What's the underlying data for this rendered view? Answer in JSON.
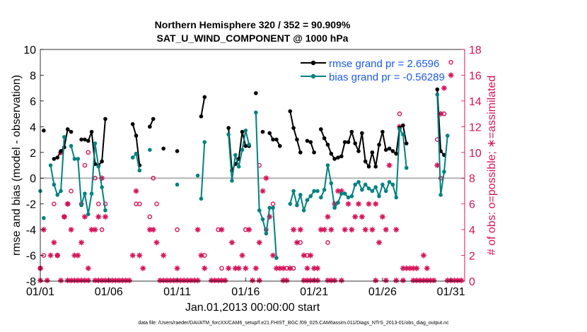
{
  "chart_data": {
    "type": "line",
    "title": "Northern Hemisphere 320 / 352 = 90.909%",
    "subtitle": "SAT_U_WIND_COMPONENT @ 1000 hPa",
    "xlabel": "Jan.01,2013 00:00:00 start",
    "ylabel_left": "rmse and bias (model - observation)",
    "ylabel_right": "# of obs: o=possible; ∗=assimilated",
    "footer": "data file: /Users/raeder/DAI/ATM_forcXX/CAM6_setup/f.e21.FHIST_BGC.f09_025.CAM6assim.011/Diags_NTrS_2013-01/obs_diag_output.nc",
    "x_tick_labels": [
      "01/01",
      "01/06",
      "01/11",
      "01/16",
      "01/21",
      "01/26",
      "01/31"
    ],
    "x_ticks": [
      1,
      6,
      11,
      16,
      21,
      26,
      31
    ],
    "xlim": [
      1,
      32
    ],
    "ylim_left": [
      -8,
      10
    ],
    "yticks_left": [
      -8,
      -6,
      -4,
      -2,
      0,
      2,
      4,
      6,
      8,
      10
    ],
    "ylim_right": [
      0,
      18
    ],
    "yticks_right": [
      0,
      2,
      4,
      6,
      8,
      10,
      12,
      14,
      16,
      18
    ],
    "grid": false,
    "zero_line": true,
    "legend_placement": "top-right",
    "colors": {
      "rmse": "#000000",
      "bias": "#00827f",
      "obs": "#d6135a",
      "zero": "#b3b3b3"
    },
    "series": [
      {
        "name": "rmse grand pr = 2.6596",
        "key": "rmse",
        "values": [
          [
            1.25,
            3.7
          ],
          null,
          [
            2.0,
            1.5
          ],
          [
            2.25,
            1.6
          ],
          [
            2.5,
            2.1
          ],
          [
            2.75,
            2.4
          ],
          [
            3.0,
            3.8
          ],
          [
            3.25,
            3.6
          ],
          null,
          [
            4.0,
            3.0
          ],
          [
            4.25,
            3.0
          ],
          [
            4.5,
            2.9
          ],
          [
            4.75,
            3.6
          ],
          [
            5.0,
            1.1
          ],
          [
            5.25,
            1.0
          ],
          [
            5.5,
            1.3
          ],
          [
            5.75,
            4.6
          ],
          null,
          [
            7.75,
            4.2
          ],
          [
            8.0,
            3.3
          ],
          [
            8.25,
            1.0
          ],
          null,
          [
            9.0,
            4.0
          ],
          [
            9.25,
            4.6
          ],
          null,
          [
            10.0,
            2.3
          ],
          null,
          [
            11.0,
            2.1
          ],
          null,
          [
            12.75,
            4.8
          ],
          [
            13.0,
            6.3
          ],
          null,
          [
            14.75,
            3.9
          ],
          [
            15.0,
            0.6
          ],
          [
            15.25,
            1.1
          ],
          [
            15.5,
            1.5
          ],
          [
            15.75,
            3.6
          ],
          [
            16.0,
            2.5
          ],
          [
            16.25,
            2.5
          ],
          null,
          [
            16.75,
            6.6
          ],
          null,
          [
            17.25,
            3.6
          ],
          null,
          [
            17.75,
            3.5
          ],
          [
            18.0,
            3.0
          ],
          [
            18.25,
            3.0
          ],
          [
            18.5,
            2.5
          ],
          null,
          [
            19.25,
            5.2
          ],
          [
            19.5,
            3.9
          ],
          [
            19.75,
            3.0
          ],
          [
            20.0,
            2.0
          ],
          null,
          [
            20.5,
            2.9
          ],
          [
            20.75,
            2.8
          ],
          [
            21.0,
            2.0
          ],
          null,
          [
            21.5,
            3.8
          ],
          [
            21.75,
            3.1
          ],
          [
            22.0,
            2.6
          ],
          [
            22.25,
            1.9
          ],
          [
            22.5,
            1.5
          ],
          [
            22.75,
            1.6
          ],
          [
            23.0,
            1.7
          ],
          [
            23.25,
            2.8
          ],
          [
            23.5,
            2.8
          ],
          [
            23.75,
            3.6
          ],
          [
            24.0,
            2.7
          ],
          [
            24.25,
            2.1
          ],
          [
            24.5,
            3.5
          ],
          [
            24.75,
            1.3
          ],
          [
            25.0,
            0.9
          ],
          [
            25.25,
            2.0
          ],
          [
            25.5,
            0.9
          ],
          [
            25.75,
            2.6
          ],
          [
            26.0,
            3.6
          ],
          [
            26.25,
            2.2
          ],
          [
            26.5,
            2.3
          ],
          [
            26.75,
            2.1
          ],
          [
            27.0,
            1.9
          ],
          [
            27.25,
            3.9
          ],
          [
            27.5,
            4.1
          ],
          [
            27.75,
            2.7
          ],
          null,
          [
            30.0,
            6.9
          ],
          [
            30.25,
            2.1
          ],
          [
            30.5,
            1.8
          ]
        ]
      },
      {
        "name": "bias grand pr = -0.56289",
        "key": "bias",
        "values": [
          [
            1.0,
            -1.0
          ],
          null,
          [
            1.25,
            -3.1
          ],
          null,
          [
            1.75,
            1.0
          ],
          [
            2.0,
            -0.5
          ],
          [
            2.25,
            -1.3
          ],
          [
            2.5,
            -1.0
          ],
          [
            2.75,
            3.2
          ],
          null,
          [
            3.25,
            2.5
          ],
          [
            3.5,
            1.5
          ],
          [
            3.75,
            1.5
          ],
          [
            4.0,
            -2.1
          ],
          [
            4.25,
            -1.2
          ],
          [
            4.5,
            -2.8
          ],
          [
            4.75,
            -1.2
          ],
          [
            5.0,
            2.7
          ],
          [
            5.25,
            0.9
          ],
          [
            5.5,
            -0.7
          ],
          [
            5.75,
            -2.5
          ],
          null,
          [
            7.75,
            1.6
          ],
          [
            8.0,
            1.9
          ],
          [
            8.25,
            0.6
          ],
          null,
          [
            9.0,
            2.2
          ],
          null,
          [
            11.0,
            -0.5
          ],
          null,
          [
            12.5,
            0.2
          ],
          null,
          [
            12.75,
            -1.6
          ],
          [
            13.0,
            2.8
          ],
          null,
          [
            14.75,
            3.4
          ],
          [
            15.0,
            -0.2
          ],
          [
            15.25,
            1.8
          ],
          [
            15.5,
            0.9
          ],
          [
            15.75,
            2.2
          ],
          [
            16.0,
            3.7
          ],
          [
            16.25,
            2.6
          ],
          null,
          [
            16.75,
            5.1
          ],
          [
            17.0,
            -2.5
          ],
          [
            17.25,
            -3.2
          ],
          [
            17.5,
            -4.3
          ],
          [
            17.75,
            -2.3
          ],
          [
            18.0,
            -2.3
          ],
          [
            18.25,
            -6.2
          ],
          null,
          [
            19.25,
            -2.0
          ],
          [
            19.5,
            -1.0
          ],
          [
            19.75,
            -2.1
          ],
          [
            20.0,
            -1.3
          ],
          [
            20.25,
            -2.5
          ],
          [
            20.5,
            -1.7
          ],
          [
            20.75,
            -1.4
          ],
          [
            21.0,
            -1.0
          ],
          [
            21.25,
            -1.0
          ],
          null,
          [
            21.5,
            -1.5
          ],
          [
            21.75,
            -0.9
          ],
          [
            22.0,
            1.0
          ],
          [
            22.25,
            -0.4
          ],
          [
            22.5,
            -2.3
          ],
          [
            22.75,
            -1.9
          ],
          [
            23.0,
            -1.2
          ],
          [
            23.25,
            -1.2
          ],
          [
            23.5,
            -1.5
          ],
          [
            23.75,
            -1.4
          ],
          [
            24.0,
            -0.5
          ],
          [
            24.25,
            -0.3
          ],
          [
            24.5,
            -0.9
          ],
          [
            24.75,
            -0.5
          ],
          [
            25.0,
            -0.8
          ],
          [
            25.25,
            -1.0
          ],
          [
            25.5,
            -0.7
          ],
          [
            25.75,
            -1.4
          ],
          [
            26.0,
            -0.5
          ],
          [
            26.25,
            -1.0
          ],
          [
            26.5,
            -0.3
          ],
          [
            26.75,
            -0.5
          ],
          [
            27.0,
            -1.5
          ],
          [
            27.25,
            3.8
          ],
          [
            27.5,
            3.4
          ],
          [
            27.75,
            0.8
          ],
          null,
          [
            30.0,
            6.5
          ],
          [
            30.25,
            -1.3
          ],
          [
            30.5,
            0.5
          ],
          [
            30.75,
            3.3
          ]
        ]
      }
    ],
    "obs_possible": [
      [
        1,
        1
      ],
      [
        1.25,
        2
      ],
      [
        2,
        6
      ],
      [
        2.25,
        2
      ],
      [
        2.5,
        10
      ],
      [
        2.75,
        5
      ],
      [
        3,
        6
      ],
      [
        3.25,
        7
      ],
      [
        4,
        6
      ],
      [
        4.25,
        9
      ],
      [
        4.5,
        10
      ],
      [
        5,
        8
      ],
      [
        5.25,
        6
      ],
      [
        5.5,
        4
      ],
      [
        5.75,
        6
      ],
      [
        8,
        6
      ],
      [
        8.25,
        6
      ],
      [
        9,
        5
      ],
      [
        9.25,
        8
      ],
      [
        9.5,
        6
      ],
      [
        11,
        4
      ],
      [
        13,
        2
      ],
      [
        14,
        4
      ],
      [
        14.25,
        1
      ],
      [
        16,
        4
      ],
      [
        17,
        9
      ],
      [
        17.5,
        4
      ],
      [
        18,
        6
      ],
      [
        19,
        1
      ],
      [
        19.5,
        1
      ],
      [
        20,
        3
      ],
      [
        20.5,
        2
      ],
      [
        22,
        3
      ],
      [
        27.25,
        13
      ],
      [
        30,
        11
      ],
      [
        30.25,
        8
      ],
      [
        30.5,
        13
      ],
      [
        31.0,
        17
      ]
    ],
    "obs_assimilated": [
      [
        1.0,
        1
      ],
      [
        1.25,
        4
      ],
      [
        1.75,
        2
      ],
      [
        2,
        3
      ],
      [
        2.25,
        2
      ],
      [
        2.5,
        10
      ],
      [
        2.75,
        5
      ],
      [
        3,
        6
      ],
      [
        3.25,
        4
      ],
      [
        3.5,
        2
      ],
      [
        3.75,
        2
      ],
      [
        4.0,
        3
      ],
      [
        4.25,
        5
      ],
      [
        4.5,
        1
      ],
      [
        4.75,
        4
      ],
      [
        5,
        4
      ],
      [
        5.25,
        5
      ],
      [
        5.5,
        8
      ],
      [
        5.75,
        5
      ],
      [
        7.75,
        2
      ],
      [
        8.0,
        7
      ],
      [
        8.25,
        2
      ],
      [
        8.5,
        1
      ],
      [
        9.0,
        4
      ],
      [
        9.25,
        4
      ],
      [
        9.5,
        3
      ],
      [
        10.0,
        2
      ],
      [
        11.0,
        1
      ],
      [
        12.5,
        4
      ],
      [
        12.75,
        2
      ],
      [
        13.0,
        1
      ],
      [
        14.25,
        4
      ],
      [
        14.75,
        1
      ],
      [
        15.0,
        3
      ],
      [
        15.25,
        1
      ],
      [
        15.5,
        1
      ],
      [
        15.75,
        2
      ],
      [
        16.0,
        1
      ],
      [
        16.25,
        4
      ],
      [
        16.75,
        1
      ],
      [
        17.0,
        3
      ],
      [
        17.25,
        7
      ],
      [
        17.5,
        8
      ],
      [
        17.75,
        5
      ],
      [
        18.0,
        2
      ],
      [
        18.25,
        1
      ],
      [
        18.5,
        1
      ],
      [
        18.75,
        1
      ],
      [
        19.25,
        1
      ],
      [
        19.5,
        4
      ],
      [
        19.75,
        3
      ],
      [
        20.0,
        4
      ],
      [
        20.25,
        2
      ],
      [
        20.5,
        1
      ],
      [
        20.75,
        2
      ],
      [
        21.0,
        1
      ],
      [
        21.25,
        1
      ],
      [
        21.5,
        4
      ],
      [
        21.75,
        4
      ],
      [
        22.0,
        5
      ],
      [
        22.25,
        4
      ],
      [
        22.5,
        6
      ],
      [
        22.75,
        7
      ],
      [
        23.0,
        7
      ],
      [
        23.25,
        4
      ],
      [
        23.5,
        6
      ],
      [
        23.75,
        4
      ],
      [
        24.0,
        5
      ],
      [
        24.25,
        6
      ],
      [
        24.5,
        5
      ],
      [
        24.75,
        4
      ],
      [
        25.0,
        6
      ],
      [
        25.25,
        4
      ],
      [
        25.5,
        6
      ],
      [
        25.75,
        3
      ],
      [
        26.0,
        5
      ],
      [
        26.25,
        4
      ],
      [
        26.5,
        9
      ],
      [
        27.0,
        4
      ],
      [
        27.25,
        12
      ],
      [
        27.5,
        1
      ],
      [
        27.75,
        1
      ],
      [
        28.0,
        1
      ],
      [
        28.25,
        1
      ],
      [
        28.5,
        1
      ],
      [
        29.0,
        2
      ],
      [
        29.25,
        1
      ],
      [
        30.0,
        9
      ],
      [
        30.25,
        13
      ],
      [
        30.5,
        15
      ],
      [
        31.0,
        16
      ]
    ],
    "obs_zero_days": [
      1.0,
      1.5,
      2.5,
      3.0,
      3.25,
      3.5,
      3.75,
      4.0,
      4.25,
      4.5,
      5.0,
      5.25,
      5.5,
      5.75,
      6.0,
      6.25,
      6.5,
      6.75,
      7.0,
      7.25,
      7.5,
      9.75,
      10.0,
      10.25,
      10.5,
      10.75,
      11.0,
      11.25,
      11.5,
      11.75,
      12.0,
      12.25,
      12.5,
      13.5,
      13.75,
      14.0,
      14.25,
      14.5,
      16.5,
      17.0,
      18.75,
      19.0,
      20.25,
      20.5,
      20.75,
      21.0,
      21.25,
      22.0,
      22.25,
      22.5,
      23.0,
      25.5,
      26.25,
      27.0,
      27.5,
      28.25,
      28.5,
      28.75,
      29.0,
      29.25,
      29.5,
      29.75,
      30.75,
      31.0,
      31.25,
      31.5,
      31.75
    ]
  }
}
